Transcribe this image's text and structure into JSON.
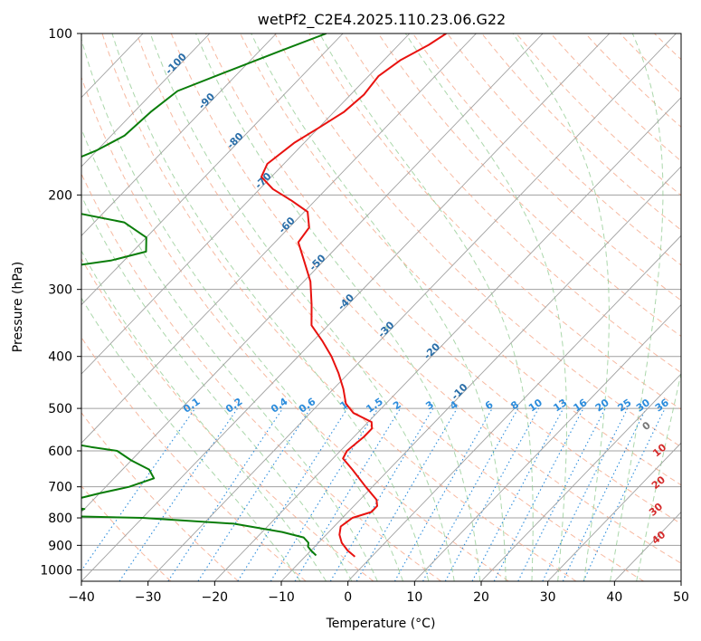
{
  "chart_data": {
    "type": "line",
    "title": "wetPf2_C2E4.2025.110.23.06.G22",
    "xlabel": "Temperature (°C)",
    "ylabel": "Pressure (hPa)",
    "xlim": [
      -40,
      50
    ],
    "ylim": [
      1050,
      100
    ],
    "y_scale": "log",
    "grid": true,
    "x_ticks": [
      "−40",
      "−30",
      "−20",
      "−10",
      "0",
      "10",
      "20",
      "30",
      "40",
      "50"
    ],
    "x_tick_values": [
      -40,
      -30,
      -20,
      -10,
      0,
      10,
      20,
      30,
      40,
      50
    ],
    "y_ticks": [
      "100",
      "200",
      "300",
      "400",
      "500",
      "600",
      "700",
      "800",
      "900",
      "1000"
    ],
    "y_tick_values": [
      100,
      200,
      300,
      400,
      500,
      600,
      700,
      800,
      900,
      1000
    ],
    "colors": {
      "temperature": "#e8120f",
      "dewpoint": "#0a7d0a",
      "isotherm": "#a0a0a0",
      "dry_adiabat": "#f5a88a",
      "moist_adiabat": "#8fc98f",
      "mixing_ratio": "#2b8cdc",
      "dry_adiabat_label": "#d42a2a",
      "moist_adiabat_label": "#2a6ea8"
    },
    "series": [
      {
        "key": "temperature",
        "color": "#e8120f",
        "points": [
          {
            "p": 100,
            "t": -64.5
          },
          {
            "p": 105,
            "t": -65.5
          },
          {
            "p": 112,
            "t": -67.5
          },
          {
            "p": 120,
            "t": -68.5
          },
          {
            "p": 130,
            "t": -68.0
          },
          {
            "p": 140,
            "t": -68.5
          },
          {
            "p": 150,
            "t": -70.0
          },
          {
            "p": 160,
            "t": -71.5
          },
          {
            "p": 175,
            "t": -72.5
          },
          {
            "p": 185,
            "t": -71.5
          },
          {
            "p": 195,
            "t": -68.0
          },
          {
            "p": 205,
            "t": -63.5
          },
          {
            "p": 215,
            "t": -59.5
          },
          {
            "p": 230,
            "t": -57.0
          },
          {
            "p": 245,
            "t": -56.5
          },
          {
            "p": 265,
            "t": -53.0
          },
          {
            "p": 290,
            "t": -49.0
          },
          {
            "p": 320,
            "t": -45.5
          },
          {
            "p": 350,
            "t": -42.5
          },
          {
            "p": 375,
            "t": -38.5
          },
          {
            "p": 400,
            "t": -35.0
          },
          {
            "p": 430,
            "t": -31.5
          },
          {
            "p": 460,
            "t": -28.5
          },
          {
            "p": 490,
            "t": -26.0
          },
          {
            "p": 510,
            "t": -23.5
          },
          {
            "p": 530,
            "t": -19.5
          },
          {
            "p": 545,
            "t": -18.5
          },
          {
            "p": 565,
            "t": -18.5
          },
          {
            "p": 600,
            "t": -19.0
          },
          {
            "p": 620,
            "t": -18.5
          },
          {
            "p": 650,
            "t": -15.5
          },
          {
            "p": 700,
            "t": -11.0
          },
          {
            "p": 740,
            "t": -7.5
          },
          {
            "p": 760,
            "t": -6.5
          },
          {
            "p": 780,
            "t": -6.5
          },
          {
            "p": 800,
            "t": -8.5
          },
          {
            "p": 830,
            "t": -9.0
          },
          {
            "p": 860,
            "t": -8.0
          },
          {
            "p": 890,
            "t": -6.5
          },
          {
            "p": 920,
            "t": -4.5
          },
          {
            "p": 945,
            "t": -2.5
          }
        ]
      },
      {
        "key": "dewpoint",
        "color": "#0a7d0a",
        "points": [
          {
            "p": 100,
            "t": -82.5
          },
          {
            "p": 108,
            "t": -87.0
          },
          {
            "p": 118,
            "t": -92.0
          },
          {
            "p": 128,
            "t": -96.5
          },
          {
            "p": 140,
            "t": -97.5
          },
          {
            "p": 155,
            "t": -98.0
          },
          {
            "p": 165,
            "t": -100.0
          },
          {
            "p": 175,
            "t": -103.0
          },
          {
            "p": 185,
            "t": -107.5
          },
          {
            "p": 191,
            "t": -111.5
          },
          {
            "p": 197,
            "t": -109.0
          },
          {
            "p": 205,
            "t": -104.0
          },
          {
            "p": 215,
            "t": -95.0
          },
          {
            "p": 225,
            "t": -85.5
          },
          {
            "p": 240,
            "t": -80.0
          },
          {
            "p": 255,
            "t": -78.0
          },
          {
            "p": 265,
            "t": -82.0
          },
          {
            "p": 275,
            "t": -90.0
          },
          {
            "p": 292,
            "t": -102.0
          },
          {
            "p": 305,
            "t": -113.5
          },
          {
            "p": 315,
            "t": -118.0
          },
          {
            "p": 330,
            "t": -118.5
          },
          {
            "p": 340,
            "t": -114.0
          },
          {
            "p": 350,
            "t": -106.5
          },
          {
            "p": 358,
            "t": -103.5
          },
          {
            "p": 368,
            "t": -108.5
          },
          {
            "p": 378,
            "t": -115.5
          },
          {
            "p": 390,
            "t": -110.0
          },
          {
            "p": 400,
            "t": -104.0
          },
          {
            "p": 415,
            "t": -102.5
          },
          {
            "p": 440,
            "t": -99.0
          },
          {
            "p": 460,
            "t": -96.0
          },
          {
            "p": 475,
            "t": -94.5
          },
          {
            "p": 495,
            "t": -98.0
          },
          {
            "p": 510,
            "t": -117.5
          },
          {
            "p": 512,
            "t": -118.0
          },
          {
            "p": 555,
            "t": -119.5
          },
          {
            "p": 558,
            "t": -80.5
          },
          {
            "p": 575,
            "t": -64.0
          },
          {
            "p": 590,
            "t": -58.0
          },
          {
            "p": 600,
            "t": -53.5
          },
          {
            "p": 625,
            "t": -50.0
          },
          {
            "p": 650,
            "t": -46.0
          },
          {
            "p": 675,
            "t": -44.0
          },
          {
            "p": 700,
            "t": -46.5
          },
          {
            "p": 720,
            "t": -50.0
          },
          {
            "p": 740,
            "t": -53.0
          },
          {
            "p": 752,
            "t": -55.5
          },
          {
            "p": 760,
            "t": -54.0
          },
          {
            "p": 770,
            "t": -50.0
          },
          {
            "p": 785,
            "t": -52.0
          },
          {
            "p": 790,
            "t": -60.0
          },
          {
            "p": 800,
            "t": -40.0
          },
          {
            "p": 820,
            "t": -25.5
          },
          {
            "p": 850,
            "t": -17.0
          },
          {
            "p": 870,
            "t": -13.0
          },
          {
            "p": 890,
            "t": -11.5
          },
          {
            "p": 905,
            "t": -11.0
          },
          {
            "p": 920,
            "t": -10.0
          },
          {
            "p": 940,
            "t": -8.5
          }
        ]
      }
    ],
    "dry_adiabat_labels": [
      "0",
      "10",
      "20",
      "30",
      "40"
    ],
    "moist_adiabat_labels": [
      "-100",
      "-90",
      "-80",
      "-70",
      "-60",
      "-50",
      "-40",
      "-30",
      "-20",
      "-10"
    ],
    "mixing_ratio_labels": [
      "0.1",
      "0.2",
      "0.4",
      "0.6",
      "1",
      "1.5",
      "2",
      "3",
      "4",
      "6",
      "8",
      "10",
      "13",
      "16",
      "20",
      "25",
      "30",
      "36"
    ]
  }
}
